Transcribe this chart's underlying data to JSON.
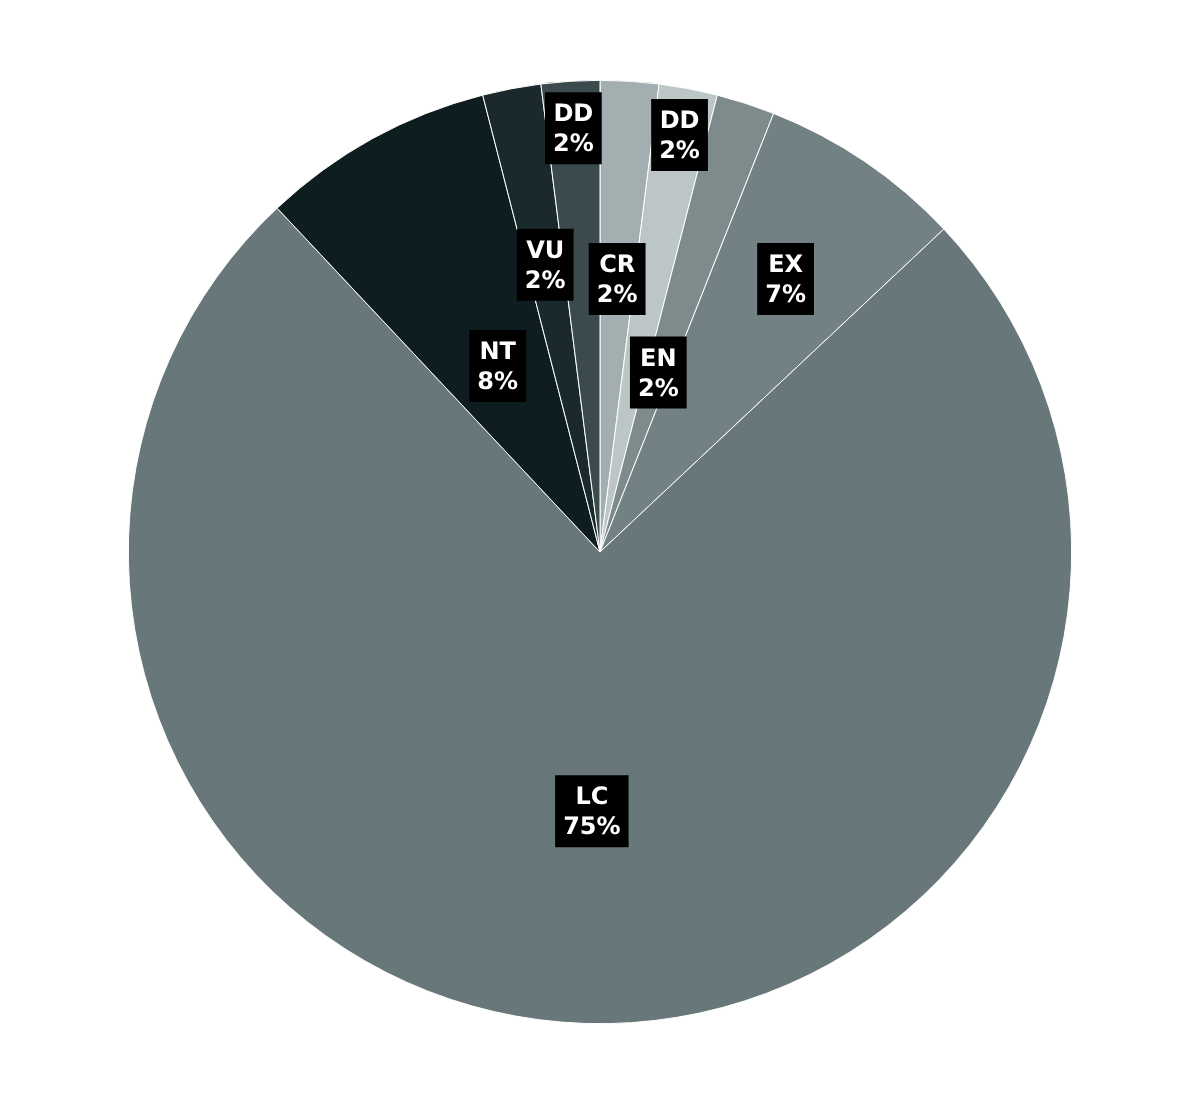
{
  "chart_data": {
    "type": "pie",
    "categories": [
      "CR",
      "DD",
      "EN",
      "EX",
      "LC",
      "NT",
      "VU",
      "DD"
    ],
    "values": [
      2,
      2,
      2,
      7,
      75,
      8,
      2,
      2
    ],
    "value_labels": [
      "2%",
      "2%",
      "2%",
      "7%",
      "75%",
      "8%",
      "2%",
      "2%"
    ],
    "colors": [
      "#a3aeb0",
      "#bcc6c7",
      "#7e8b8d",
      "#728183",
      "#687779",
      "#0e1d20",
      "#1a2a2c",
      "#3a4a4d"
    ],
    "legend": false
  }
}
